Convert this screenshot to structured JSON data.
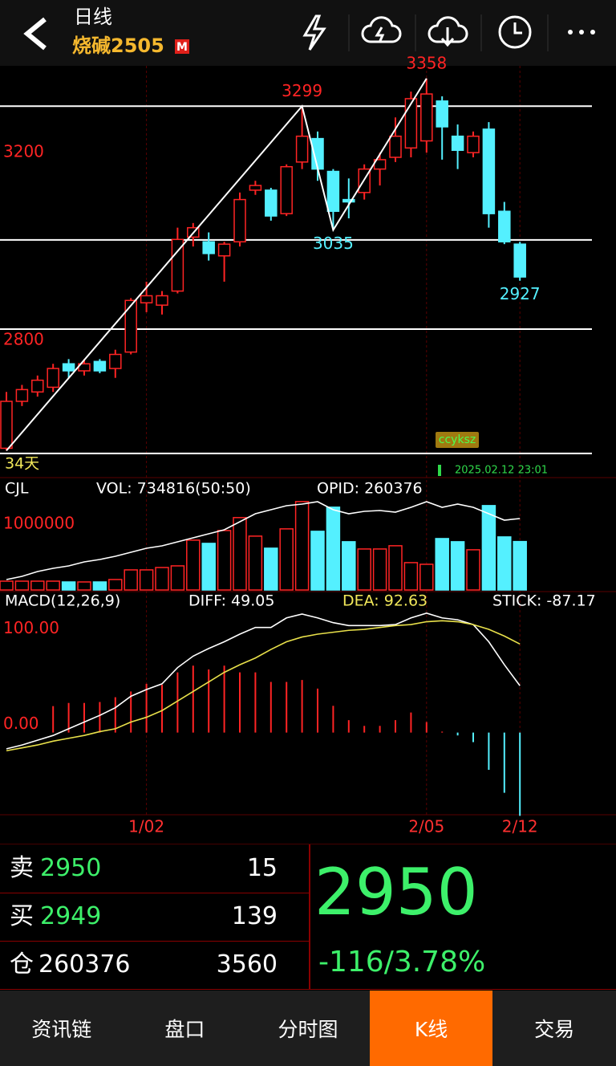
{
  "header": {
    "title": "日线",
    "symbol": "烧碱2505",
    "badge": "M"
  },
  "chart_data": [
    {
      "type": "candlestick",
      "categories": [
        null,
        null,
        null,
        null,
        null,
        null,
        null,
        null,
        null,
        "1/02",
        null,
        null,
        null,
        null,
        null,
        null,
        null,
        null,
        null,
        null,
        null,
        null,
        null,
        null,
        null,
        null,
        null,
        "2/05",
        null,
        null,
        null,
        null,
        null,
        "2/12"
      ],
      "open": [
        2570,
        2670,
        2690,
        2700,
        2750,
        2735,
        2755,
        2740,
        2775,
        2880,
        2875,
        2905,
        3020,
        3010,
        2980,
        3010,
        3120,
        3120,
        3070,
        3180,
        3230,
        3160,
        3100,
        3115,
        3165,
        3190,
        3210,
        3225,
        3310,
        3235,
        3200,
        3250,
        3075,
        3005
      ],
      "high": [
        2690,
        2705,
        2725,
        2750,
        2760,
        2760,
        2760,
        2780,
        2890,
        2925,
        2905,
        3040,
        3050,
        3030,
        3010,
        3115,
        3140,
        3125,
        3175,
        3299,
        3245,
        3165,
        3145,
        3175,
        3200,
        3275,
        3330,
        3358,
        3320,
        3260,
        3245,
        3265,
        3095,
        3010
      ],
      "low": [
        2565,
        2660,
        2680,
        2690,
        2720,
        2725,
        2730,
        2720,
        2770,
        2860,
        2855,
        2900,
        3000,
        2970,
        2925,
        3000,
        3110,
        3055,
        3065,
        3165,
        3140,
        3035,
        3060,
        3100,
        3130,
        3180,
        3190,
        3200,
        3185,
        3165,
        3190,
        3040,
        3005,
        2927
      ],
      "close": [
        2670,
        2695,
        2715,
        2740,
        2735,
        2750,
        2735,
        2770,
        2885,
        2895,
        2895,
        3015,
        3040,
        2985,
        3005,
        3100,
        3130,
        3065,
        3170,
        3235,
        3165,
        3075,
        3095,
        3165,
        3185,
        3235,
        3315,
        3325,
        3255,
        3205,
        3235,
        3070,
        3010,
        2935
      ],
      "up_color": "#ff2424",
      "down_color": "#54f0ff",
      "ylim": [
        2516,
        3385
      ],
      "yticks": [
        2800,
        3200
      ],
      "hlines": [
        3299,
        3014,
        2824,
        2559
      ],
      "zigzag": {
        "indices": [
          0,
          19,
          21,
          27
        ],
        "values": [
          2565,
          3299,
          3035,
          3358
        ]
      },
      "annotations": [
        {
          "index": 19,
          "value": 3299,
          "color": "#ff2424"
        },
        {
          "index": 21,
          "value": 3035,
          "color": "#54f0ff"
        },
        {
          "index": 27,
          "value": 3358,
          "color": "#ff2424"
        },
        {
          "index": 33,
          "value": 2927,
          "color": "#54f0ff"
        }
      ],
      "period_label": "34天",
      "tag": "ccyksz",
      "timestamp": "2025.02.12 23:01"
    },
    {
      "type": "volume",
      "title": "CJL",
      "legend": [
        {
          "label": "VOL: 734816(50:50)",
          "color": "#ffffff"
        },
        {
          "label": "OPID: 260376",
          "color": "#ffffff"
        }
      ],
      "values": [
        134000,
        134000,
        134000,
        134000,
        122000,
        122000,
        122000,
        159000,
        305000,
        305000,
        341000,
        366000,
        756000,
        707000,
        902000,
        1098000,
        817000,
        634000,
        927000,
        1341000,
        890000,
        1256000,
        732000,
        622000,
        622000,
        671000,
        415000,
        390000,
        780000,
        732000,
        610000,
        1280000,
        805000,
        734816
      ],
      "line": {
        "values": [
          138800,
          145200,
          154800,
          161200,
          166000,
          174000,
          178800,
          185200,
          193200,
          201200,
          206000,
          214000,
          222000,
          230000,
          238000,
          254000,
          270000,
          278000,
          286000,
          289200,
          294000,
          278000,
          270000,
          274800,
          276400,
          273200,
          282800,
          294000,
          282800,
          289200,
          282800,
          270000,
          257200,
          260376
        ],
        "color": "#ffffff",
        "axis": "y2"
      },
      "ylim": [
        0,
        1680000
      ],
      "yticks": [
        1000000
      ],
      "y2lim": [
        118000,
        338800
      ]
    },
    {
      "type": "macd",
      "title": "MACD(12,26,9)",
      "legend": [
        {
          "label": "DIFF: 49.05",
          "color": "#ffffff"
        },
        {
          "label": "DEA: 92.63",
          "color": "#f2e85a"
        },
        {
          "label": "STICK: -87.17",
          "color": "#ffffff"
        }
      ],
      "series": [
        {
          "color": "#ffffff",
          "values": [
            -17,
            -13,
            -8,
            -3,
            4,
            11,
            18,
            26,
            38,
            45,
            51,
            68,
            80,
            88,
            95,
            103,
            110,
            110,
            120,
            124,
            120,
            115,
            112,
            112,
            112,
            113,
            120,
            125,
            120,
            118,
            113,
            95,
            71,
            49.05
          ]
        },
        {
          "color": "#e8e04a",
          "values": [
            -19,
            -16,
            -13,
            -9,
            -6,
            -3,
            1,
            4,
            11,
            16,
            23,
            33,
            43,
            53,
            63,
            71,
            78,
            87,
            95,
            100,
            103,
            105,
            107,
            108,
            110,
            112,
            113,
            116,
            117,
            116,
            113,
            108,
            101,
            92.63
          ]
        },
        {
          "values": [
            null,
            null,
            null,
            27.7,
            31,
            31,
            32,
            37,
            43,
            51,
            50,
            63,
            70,
            66,
            70,
            63,
            63,
            53,
            53,
            55,
            46,
            28,
            13,
            7,
            7,
            13,
            21,
            11,
            1,
            -3,
            -10,
            -39,
            -63,
            -87.17
          ]
        }
      ],
      "ylim": [
        -86,
        145
      ],
      "yticks": [
        {
          "value": 0,
          "label": "0.00"
        },
        {
          "value": 100,
          "label": "100.00"
        }
      ]
    }
  ],
  "order_book": {
    "rows": [
      {
        "side": "卖",
        "price": 2950,
        "qty": 15
      },
      {
        "side": "买",
        "price": 2949,
        "qty": 139
      },
      {
        "side": "仓",
        "price": 260376,
        "qty": 3560
      }
    ],
    "last": 2950,
    "change": "-116/3.78%"
  },
  "tabs": {
    "items": [
      "资讯链",
      "盘口",
      "分时图",
      "K线",
      "交易"
    ],
    "active": 3
  }
}
